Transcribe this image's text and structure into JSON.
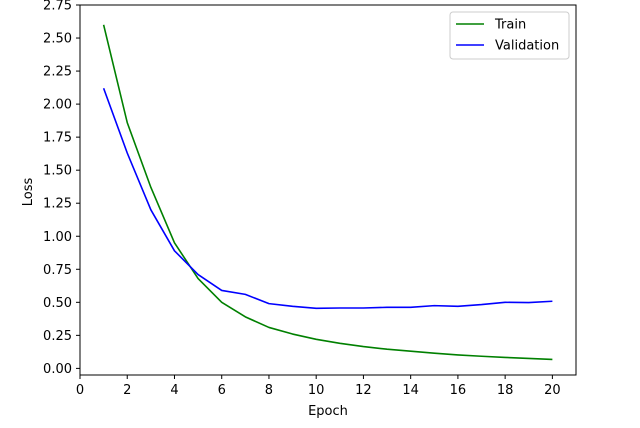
{
  "chart_data": {
    "type": "line",
    "xlabel": "Epoch",
    "ylabel": "Loss",
    "xlim": [
      0,
      21
    ],
    "ylim": [
      -0.05,
      2.75
    ],
    "xticks": [
      0,
      2,
      4,
      6,
      8,
      10,
      12,
      14,
      16,
      18,
      20
    ],
    "yticks": [
      0.0,
      0.25,
      0.5,
      0.75,
      1.0,
      1.25,
      1.5,
      1.75,
      2.0,
      2.25,
      2.5,
      2.75
    ],
    "grid": false,
    "legend_position": "top-right",
    "x": [
      1,
      2,
      3,
      4,
      5,
      6,
      7,
      8,
      9,
      10,
      11,
      12,
      13,
      14,
      15,
      16,
      17,
      18,
      19,
      20
    ],
    "series": [
      {
        "name": "Train",
        "color": "#008000",
        "values": [
          2.6,
          1.86,
          1.37,
          0.95,
          0.68,
          0.5,
          0.39,
          0.31,
          0.26,
          0.22,
          0.19,
          0.165,
          0.145,
          0.13,
          0.115,
          0.102,
          0.092,
          0.083,
          0.075,
          0.068
        ]
      },
      {
        "name": "Validation",
        "color": "#0000ff",
        "values": [
          2.12,
          1.63,
          1.2,
          0.89,
          0.71,
          0.59,
          0.56,
          0.49,
          0.47,
          0.455,
          0.457,
          0.457,
          0.462,
          0.462,
          0.475,
          0.47,
          0.483,
          0.5,
          0.498,
          0.508
        ]
      }
    ]
  }
}
